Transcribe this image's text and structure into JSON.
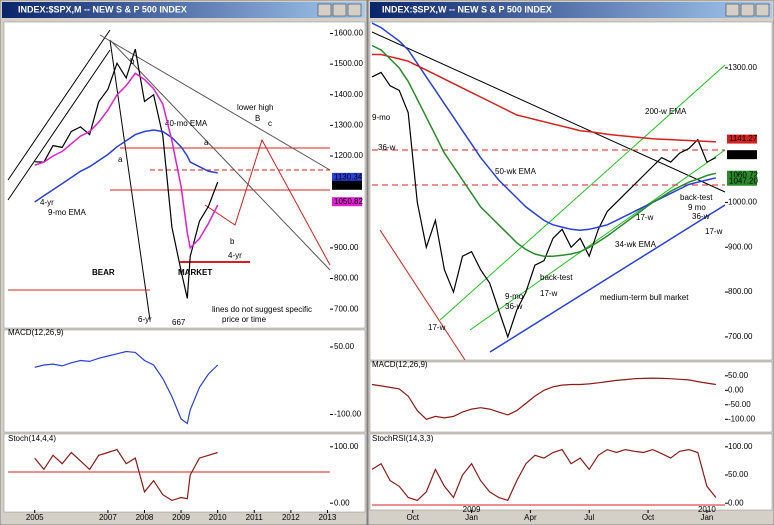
{
  "chart_data": [
    {
      "type": "line",
      "window_title": "INDEX:$SPX,M -- NEW S & P 500 INDEX",
      "x": [
        2005,
        2005.25,
        2005.5,
        2005.75,
        2006,
        2006.25,
        2006.5,
        2006.75,
        2007,
        2007.25,
        2007.5,
        2007.75,
        2008,
        2008.25,
        2008.5,
        2008.75,
        2009,
        2009.17,
        2009.25,
        2009.5,
        2009.75,
        2010
      ],
      "xlim": [
        2004.27,
        2013.07
      ],
      "series": [
        {
          "color": "#000000",
          "values": [
            1181,
            1180,
            1234,
            1228,
            1280,
            1295,
            1270,
            1377,
            1418,
            1503,
            1455,
            1549,
            1378,
            1400,
            1267,
            968,
            825,
            735,
            872,
            987,
            1036,
            1115
          ]
        },
        {
          "name": "40-mo EMA",
          "color": "#2a3fd8",
          "values": [
            1050,
            1070,
            1090,
            1110,
            1130,
            1150,
            1165,
            1185,
            1205,
            1230,
            1250,
            1270,
            1280,
            1285,
            1280,
            1260,
            1230,
            1200,
            1180,
            1165,
            1150,
            1145
          ]
        },
        {
          "name": "9-mo EMA",
          "color": "#e020d0",
          "values": [
            1170,
            1180,
            1200,
            1215,
            1240,
            1265,
            1280,
            1310,
            1350,
            1400,
            1430,
            1470,
            1450,
            1420,
            1370,
            1250,
            1100,
            950,
            900,
            930,
            980,
            1040
          ]
        }
      ],
      "ylim": [
        645,
        1618
      ],
      "yticks": [
        {
          "value": 1600,
          "label": "1600.00"
        },
        {
          "value": 1500,
          "label": "1500.00"
        },
        {
          "value": 1400,
          "label": "1400.00"
        },
        {
          "value": 1300,
          "label": "1300.00"
        },
        {
          "value": 1200,
          "label": "1200.00"
        },
        {
          "value": 900,
          "label": "900.00"
        },
        {
          "value": 800,
          "label": "800.00"
        },
        {
          "value": 700,
          "label": "700.00"
        }
      ],
      "price_tags": [
        1130.34,
        1104.44,
        1050.82
      ],
      "annotations": [
        "BEAR",
        "MARKET",
        "lower high",
        "B",
        "c",
        "a",
        "b",
        "a",
        "b",
        "4-yr",
        "4-yr",
        "6-yr",
        "667",
        "lines do not suggest specific",
        "price or time"
      ]
    },
    {
      "type": "line",
      "title": "MACD(12,26,9)",
      "x": [
        2005,
        2005.25,
        2005.5,
        2005.75,
        2006,
        2006.25,
        2006.5,
        2006.75,
        2007,
        2007.25,
        2007.5,
        2007.75,
        2008,
        2008.25,
        2008.5,
        2008.75,
        2009,
        2009.17,
        2009.25,
        2009.5,
        2009.75,
        2010
      ],
      "xlim": [
        2004.27,
        2013.07
      ],
      "series": [
        {
          "color": "#2a3fd8",
          "values": [
            5,
            10,
            12,
            8,
            15,
            20,
            18,
            25,
            30,
            35,
            40,
            38,
            20,
            10,
            -20,
            -60,
            -110,
            -120,
            -90,
            -40,
            -10,
            10
          ]
        }
      ],
      "ylim": [
        -130,
        70
      ],
      "yticks": [
        {
          "value": 50,
          "label": "50.00"
        },
        {
          "value": -100,
          "label": "-100.00"
        }
      ]
    },
    {
      "type": "line",
      "title": "Stoch(14,4,4)",
      "x": [
        2005,
        2005.25,
        2005.5,
        2005.75,
        2006,
        2006.25,
        2006.5,
        2006.75,
        2007,
        2007.25,
        2007.5,
        2007.75,
        2008,
        2008.25,
        2008.5,
        2008.75,
        2009,
        2009.17,
        2009.25,
        2009.5,
        2009.75,
        2010
      ],
      "xlim": [
        2004.27,
        2013.07
      ],
      "series": [
        {
          "color": "#8b1a1a",
          "values": [
            80,
            60,
            85,
            70,
            90,
            75,
            60,
            85,
            90,
            95,
            70,
            80,
            20,
            40,
            15,
            5,
            10,
            8,
            50,
            80,
            85,
            90
          ]
        }
      ],
      "ylim": [
        -5,
        105
      ],
      "yticks": [
        {
          "value": 100,
          "label": "100.00"
        },
        {
          "value": 0,
          "label": "0.00"
        }
      ],
      "xticks": [
        2005,
        2007,
        2008,
        2009,
        2010,
        2011,
        2012,
        2013
      ]
    },
    {
      "type": "line",
      "window_title": "INDEX:$SPX,W -- NEW S & P 500 INDEX",
      "x": [
        0,
        2,
        4,
        6,
        8,
        10,
        12,
        14,
        16,
        18,
        20,
        22,
        24,
        26,
        28,
        30,
        32,
        34,
        36,
        38,
        40,
        42,
        44,
        46,
        48,
        50,
        52,
        54,
        56,
        58,
        60,
        62,
        64,
        66,
        68,
        70,
        72,
        74,
        76
      ],
      "xlim": [
        0,
        78
      ],
      "series": [
        {
          "color": "#000000",
          "values": [
            1280,
            1290,
            1260,
            1250,
            1200,
            1000,
            900,
            960,
            850,
            800,
            880,
            890,
            850,
            820,
            760,
            700,
            760,
            800,
            860,
            870,
            920,
            940,
            900,
            920,
            880,
            940,
            980,
            1000,
            1020,
            1040,
            1060,
            1080,
            1100,
            1090,
            1110,
            1120,
            1140,
            1090,
            1100
          ]
        },
        {
          "name": "50-wk EMA",
          "color": "#2a3fd8",
          "values": [
            1400,
            1390,
            1375,
            1360,
            1340,
            1310,
            1280,
            1250,
            1220,
            1190,
            1160,
            1130,
            1100,
            1075,
            1050,
            1030,
            1010,
            990,
            975,
            960,
            950,
            945,
            940,
            938,
            940,
            945,
            950,
            960,
            970,
            980,
            990,
            1000,
            1010,
            1020,
            1030,
            1040,
            1045,
            1050,
            1055
          ]
        },
        {
          "name": "200-w EMA",
          "color": "#d42020",
          "values": [
            1330,
            1330,
            1325,
            1320,
            1315,
            1305,
            1295,
            1285,
            1275,
            1265,
            1255,
            1245,
            1235,
            1225,
            1215,
            1205,
            1195,
            1190,
            1185,
            1180,
            1175,
            1170,
            1165,
            1160,
            1158,
            1155,
            1152,
            1150,
            1148,
            1146,
            1144,
            1142,
            1141,
            1140,
            1139,
            1138,
            1137,
            1136,
            1135
          ]
        },
        {
          "name": "34-wk EMA",
          "color": "#2a8a2a",
          "values": [
            1350,
            1340,
            1320,
            1300,
            1270,
            1230,
            1190,
            1150,
            1110,
            1080,
            1050,
            1020,
            990,
            970,
            950,
            930,
            910,
            895,
            885,
            880,
            880,
            882,
            885,
            890,
            900,
            912,
            925,
            940,
            955,
            970,
            985,
            1000,
            1012,
            1025,
            1035,
            1045,
            1052,
            1060,
            1065
          ]
        }
      ],
      "ylim": [
        653,
        1389
      ],
      "yticks": [
        {
          "value": 1300,
          "label": "1300.00"
        },
        {
          "value": 1000,
          "label": "1000.00"
        },
        {
          "value": 900,
          "label": "900.00"
        },
        {
          "value": 800,
          "label": "800.00"
        },
        {
          "value": 700,
          "label": "700.00"
        }
      ],
      "price_tags": [
        1141.27,
        1106.48,
        1060.72,
        {
          "value": 1047.2,
          "label": "1047.20"
        }
      ],
      "annotations": [
        "9-mo",
        "36-w",
        "17-w",
        "back-test",
        "9-mo",
        "36-w",
        "17-w",
        "medium-term bull market",
        "17-w",
        "back-test",
        "9 mo",
        "36-w",
        "17-w"
      ]
    },
    {
      "type": "line",
      "title": "MACD(12,26,9)",
      "x": [
        0,
        2,
        4,
        6,
        8,
        10,
        12,
        14,
        16,
        18,
        20,
        22,
        24,
        26,
        28,
        30,
        32,
        34,
        36,
        38,
        40,
        42,
        44,
        46,
        48,
        50,
        52,
        54,
        56,
        58,
        60,
        62,
        64,
        66,
        68,
        70,
        72,
        74,
        76
      ],
      "xlim": [
        0,
        78
      ],
      "series": [
        {
          "color": "#8b1a1a",
          "values": [
            20,
            15,
            10,
            5,
            -20,
            -70,
            -100,
            -90,
            -95,
            -90,
            -75,
            -65,
            -60,
            -65,
            -75,
            -85,
            -70,
            -45,
            -20,
            0,
            12,
            18,
            20,
            20,
            22,
            26,
            30,
            34,
            37,
            40,
            41,
            42,
            41,
            40,
            38,
            36,
            30,
            25,
            20
          ]
        }
      ],
      "ylim": [
        -130,
        70
      ],
      "yticks": [
        {
          "value": 50,
          "label": "50.00"
        },
        {
          "value": 0,
          "label": "0.00"
        },
        {
          "value": -50,
          "label": "-50.00"
        },
        {
          "value": -100,
          "label": "-100.00"
        }
      ]
    },
    {
      "type": "line",
      "title": "StochRSI(14,3,3)",
      "x": [
        0,
        2,
        4,
        6,
        8,
        10,
        12,
        14,
        16,
        18,
        20,
        22,
        24,
        26,
        28,
        30,
        32,
        34,
        36,
        38,
        40,
        42,
        44,
        46,
        48,
        50,
        52,
        54,
        56,
        58,
        60,
        62,
        64,
        66,
        68,
        70,
        72,
        74,
        76
      ],
      "xlim": [
        0,
        78
      ],
      "series": [
        {
          "color": "#8b1a1a",
          "values": [
            60,
            70,
            40,
            30,
            10,
            5,
            20,
            60,
            30,
            10,
            50,
            70,
            40,
            20,
            10,
            5,
            40,
            70,
            85,
            80,
            90,
            95,
            70,
            80,
            60,
            85,
            95,
            90,
            95,
            92,
            90,
            95,
            88,
            80,
            92,
            95,
            90,
            30,
            10
          ]
        }
      ],
      "ylim": [
        -5,
        105
      ],
      "yticks": [
        {
          "value": 100,
          "label": "100.00"
        },
        {
          "value": 50,
          "label": "50.00"
        },
        {
          "value": 0,
          "label": "0.00"
        }
      ],
      "xticks": [
        {
          "value": 9,
          "label": "Oct"
        },
        {
          "value": 22,
          "label": "Jan"
        },
        {
          "value": 35,
          "label": "Apr"
        },
        {
          "value": 48,
          "label": "Jul"
        },
        {
          "value": 61,
          "label": "Oct"
        },
        {
          "value": 74,
          "label": "Jan"
        }
      ],
      "year_labels": [
        {
          "value": 22,
          "label": "2009"
        },
        {
          "value": 74,
          "label": "2010"
        }
      ]
    }
  ]
}
